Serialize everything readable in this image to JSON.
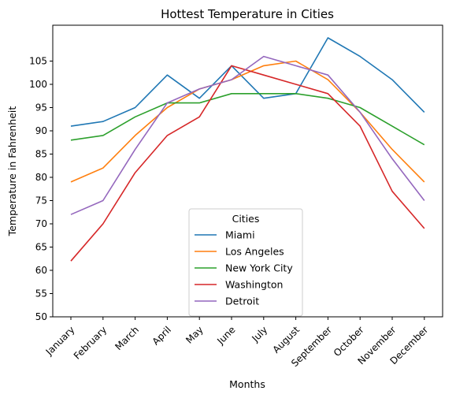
{
  "chart_data": {
    "type": "line",
    "title": "Hottest Temperature in Cities",
    "xlabel": "Months",
    "ylabel": "Temperature in Fahrenheit",
    "categories": [
      "January",
      "February",
      "March",
      "April",
      "May",
      "June",
      "July",
      "August",
      "September",
      "October",
      "November",
      "December"
    ],
    "y_ticks": [
      50,
      55,
      60,
      65,
      70,
      75,
      80,
      85,
      90,
      95,
      100,
      105
    ],
    "ylim": [
      50,
      112
    ],
    "grid": false,
    "legend": {
      "title": "Cities",
      "placement": "lower-center"
    },
    "series": [
      {
        "name": "Miami",
        "color": "#1f77b4",
        "values": [
          91,
          92,
          95,
          102,
          97,
          104,
          97,
          98,
          110,
          106,
          101,
          94
        ]
      },
      {
        "name": "Los Angeles",
        "color": "#ff7f0e",
        "values": [
          79,
          82,
          89,
          95,
          99,
          101,
          104,
          105,
          101,
          94,
          86,
          79
        ]
      },
      {
        "name": "New York City",
        "color": "#2ca02c",
        "values": [
          88,
          89,
          93,
          96,
          96,
          98,
          98,
          98,
          97,
          95,
          91,
          87
        ]
      },
      {
        "name": "Washington",
        "color": "#d62728",
        "values": [
          62,
          70,
          81,
          89,
          93,
          104,
          102,
          100,
          98,
          91,
          77,
          69
        ]
      },
      {
        "name": "Detroit",
        "color": "#9467bd",
        "values": [
          72,
          75,
          86,
          96,
          99,
          101,
          106,
          104,
          102,
          94,
          84,
          75
        ]
      }
    ]
  }
}
